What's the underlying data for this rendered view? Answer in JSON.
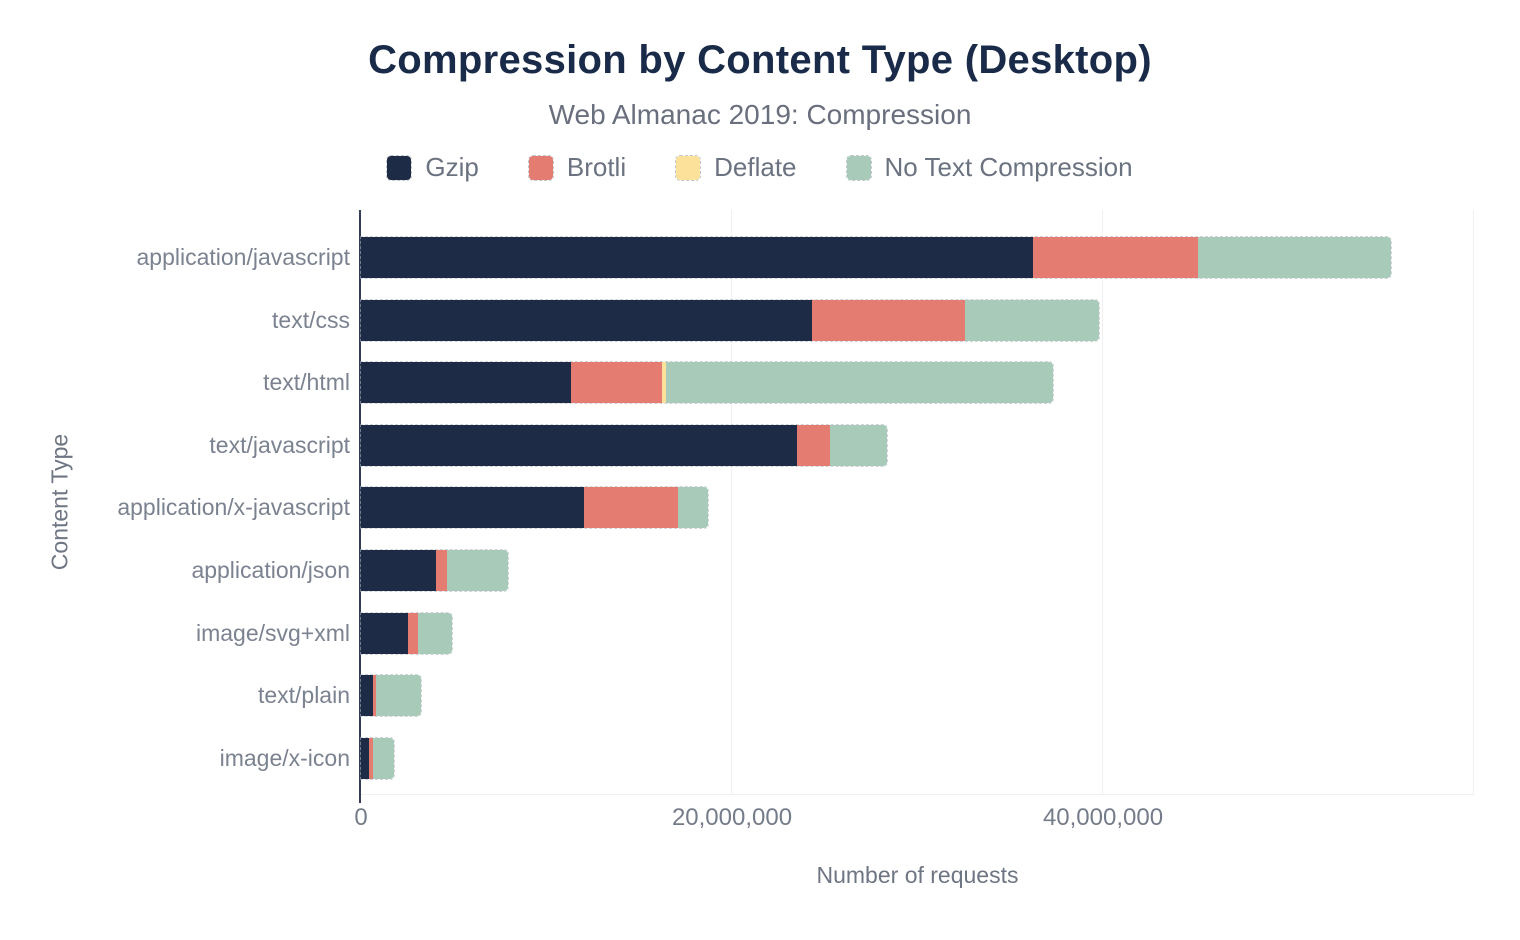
{
  "title": "Compression by Content Type (Desktop)",
  "subtitle": "Web Almanac 2019: Compression",
  "colors": {
    "title": "#1a2b49",
    "axis_line": "#333e56",
    "gridline": "#eef0f3",
    "label_gray": "#7b8290"
  },
  "chart_data": {
    "type": "bar",
    "orientation": "horizontal-stacked",
    "title": "Compression by Content Type (Desktop)",
    "subtitle": "Web Almanac 2019: Compression",
    "xlabel": "Number of requests",
    "ylabel": "Content Type",
    "xlim": [
      0,
      60000000
    ],
    "grid": "vertical",
    "legend_position": "top-center",
    "categories": [
      "application/javascript",
      "text/css",
      "text/html",
      "text/javascript",
      "application/x-javascript",
      "application/json",
      "image/svg+xml",
      "text/plain",
      "image/x-icon"
    ],
    "x_ticks": [
      {
        "value": 0,
        "label": "0"
      },
      {
        "value": 20000000,
        "label": "20,000,000"
      },
      {
        "value": 40000000,
        "label": "40,000,000"
      }
    ],
    "gridlines": [
      20000000,
      40000000,
      60000000
    ],
    "series": [
      {
        "name": "Gzip",
        "color": "#1e2b47",
        "values": [
          36200000,
          24300000,
          11300000,
          23500000,
          12000000,
          4050000,
          2550000,
          650000,
          450000
        ]
      },
      {
        "name": "Brotli",
        "color": "#e57c72",
        "values": [
          8900000,
          8250000,
          4950000,
          1800000,
          5100000,
          600000,
          550000,
          160000,
          220000
        ]
      },
      {
        "name": "Deflate",
        "color": "#fbe19a",
        "values": [
          0,
          0,
          180000,
          0,
          0,
          0,
          0,
          0,
          0
        ]
      },
      {
        "name": "No Text Compression",
        "color": "#a8cab8",
        "values": [
          10400000,
          7250000,
          20900000,
          3050000,
          1600000,
          3250000,
          1800000,
          2400000,
          1130000
        ]
      }
    ]
  }
}
